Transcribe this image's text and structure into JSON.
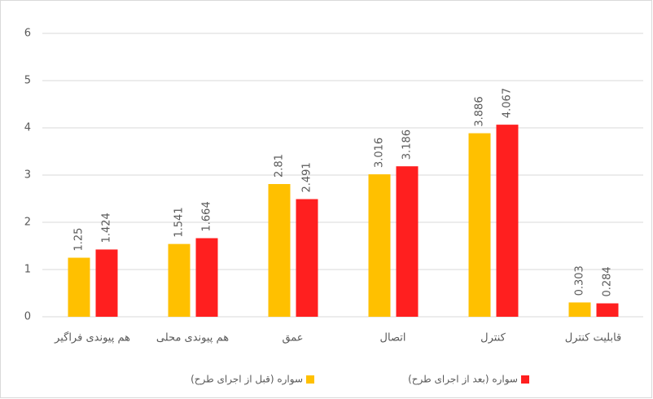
{
  "chart_data": {
    "type": "bar",
    "categories": [
      "هم پیوندی فراگیر",
      "هم پیوندی محلی",
      "عمق",
      "اتصال",
      "کنترل",
      "قابلیت کنترل"
    ],
    "series": [
      {
        "name": "سواره (قبل از اجرای طرح)",
        "color": "#ffc000",
        "values": [
          1.25,
          1.541,
          2.81,
          3.016,
          3.886,
          0.303
        ]
      },
      {
        "name": "سواره (بعد از اجرای طرح)",
        "color": "#ff1f1f",
        "values": [
          1.424,
          1.664,
          2.491,
          3.186,
          4.067,
          0.284
        ]
      }
    ],
    "ylim": [
      0,
      6
    ],
    "yticks": [
      0,
      1,
      2,
      3,
      4,
      5,
      6
    ],
    "grid": true,
    "legend": "bottom"
  }
}
